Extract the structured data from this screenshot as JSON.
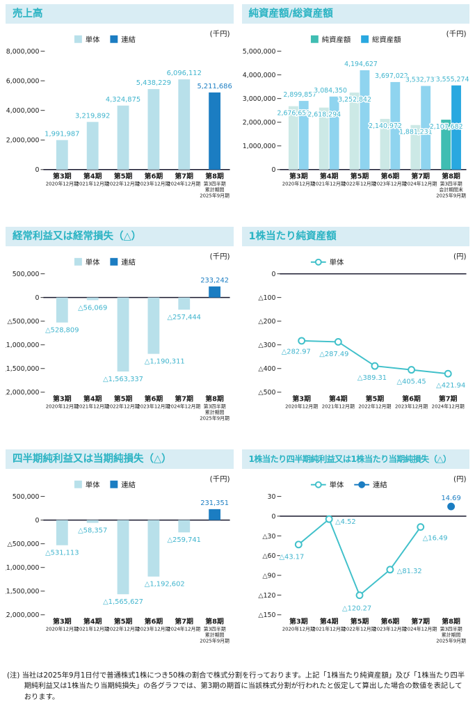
{
  "page": {
    "footnote": "(注) 当社は2025年9月1日付で普通株式1株につき50株の割合で株式分割を行っております。上記「1株当たり純資産額」及び「1株当たり四半期純利益又は1株当たり当期純損失」の各グラフでは、第3期の期首に当該株式分割が行われたと仮定して算出した場合の数値を表記しております。"
  },
  "colors": {
    "title_text": "#2ab3c3",
    "title_band_bg": "#d9edf4",
    "standalone_light_blue": "#b8e0ea",
    "consolidated_blue": "#1b7dc2",
    "net_assets_teal": "#3fbdb2",
    "net_assets_teal_light": "#cce9e6",
    "total_assets_sky": "#29a8e0",
    "total_assets_sky_light": "#8fd4ef",
    "value_label_cyan": "#3fb4cd",
    "line_teal": "#40c0ca",
    "axis": "#16162b"
  },
  "chart_data": [
    {
      "type": "bar",
      "title": "売上高",
      "unit": "(千円)",
      "legend": [
        {
          "label": "単体",
          "color": "#b8e0ea"
        },
        {
          "label": "連結",
          "color": "#1b7dc2"
        }
      ],
      "categories": [
        [
          "第3期",
          "2020年12月期"
        ],
        [
          "第4期",
          "2021年12月期"
        ],
        [
          "第5期",
          "2022年12月期"
        ],
        [
          "第6期",
          "2023年12月期"
        ],
        [
          "第7期",
          "2024年12月期"
        ],
        [
          "第8期",
          "第3四半期",
          "累計期間",
          "2025年9月期"
        ]
      ],
      "values": [
        1991987,
        3219892,
        4324875,
        5438229,
        6096112,
        5211686
      ],
      "labels": [
        "1,991,987",
        "3,219,892",
        "4,324,875",
        "5,438,229",
        "6,096,112",
        "5,211,686"
      ],
      "bar_colors": [
        "#b8e0ea",
        "#b8e0ea",
        "#b8e0ea",
        "#b8e0ea",
        "#b8e0ea",
        "#1b7dc2"
      ],
      "label_colors": [
        "#3fb4cd",
        "#3fb4cd",
        "#3fb4cd",
        "#3fb4cd",
        "#3fb4cd",
        "#1b7dc2"
      ],
      "label_dx": [
        0,
        0,
        0,
        0,
        0,
        0
      ],
      "ylim": [
        0,
        8000000
      ],
      "ytick_step": 2000000,
      "ytick_labels": [
        "8,000,000",
        "6,000,000",
        "4,000,000",
        "2,000,000",
        "0"
      ]
    },
    {
      "type": "bar",
      "title": "純資産額/総資産額",
      "unit": "(千円)",
      "legend": [
        {
          "label": "純資産額",
          "color": "#3fbdb2"
        },
        {
          "label": "総資産額",
          "color": "#29a8e0"
        }
      ],
      "categories": [
        [
          "第3期",
          "2020年12月期"
        ],
        [
          "第4期",
          "2021年12月期"
        ],
        [
          "第5期",
          "2022年12月期"
        ],
        [
          "第6期",
          "2023年12月期"
        ],
        [
          "第7期",
          "2024年12月期"
        ],
        [
          "第8期",
          "第3四半期",
          "会計期間末",
          "2025年9月期"
        ]
      ],
      "series": [
        {
          "name": "純資産額",
          "values": [
            2676651,
            2618294,
            3252842,
            2140972,
            1881231,
            2107682
          ],
          "labels": [
            "2,676,651",
            "2,618,294",
            "3,252,842",
            "2,140,972",
            "1,881,231",
            "2,107,682"
          ],
          "colors": [
            "#cce9e6",
            "#cce9e6",
            "#cce9e6",
            "#cce9e6",
            "#cce9e6",
            "#3fbdb2"
          ]
        },
        {
          "name": "総資産額",
          "values": [
            2899857,
            3084350,
            4194627,
            3697022,
            3532737,
            3555274
          ],
          "labels": [
            "2,899,857",
            "3,084,350",
            "4,194,627",
            "3,697,022",
            "3,532,737",
            "3,555,274"
          ],
          "colors": [
            "#8fd4ef",
            "#8fd4ef",
            "#8fd4ef",
            "#8fd4ef",
            "#8fd4ef",
            "#29a8e0"
          ]
        }
      ],
      "label_color": "#3fb4cd",
      "ylim": [
        0,
        5000000
      ],
      "ytick_step": 1000000,
      "ytick_labels": [
        "5,000,000",
        "4,000,000",
        "3,000,000",
        "2,000,000",
        "1,000,000",
        "0"
      ]
    },
    {
      "type": "bar",
      "title": "経常利益又は経常損失（△）",
      "unit": "(千円)",
      "legend": [
        {
          "label": "単体",
          "color": "#b8e0ea"
        },
        {
          "label": "連結",
          "color": "#1b7dc2"
        }
      ],
      "categories": [
        [
          "第3期",
          "2020年12月期"
        ],
        [
          "第4期",
          "2021年12月期"
        ],
        [
          "第5期",
          "2022年12月期"
        ],
        [
          "第6期",
          "2023年12月期"
        ],
        [
          "第7期",
          "2024年12月期"
        ],
        [
          "第8期",
          "第3四半期",
          "累計期間",
          "2025年9月期"
        ]
      ],
      "values": [
        -528809,
        -56069,
        -1563337,
        -1190311,
        -257444,
        233242
      ],
      "labels": [
        "△528,809",
        "△56,069",
        "△1,563,337",
        "△1,190,311",
        "△257,444",
        "233,242"
      ],
      "bar_colors": [
        "#b8e0ea",
        "#b8e0ea",
        "#b8e0ea",
        "#b8e0ea",
        "#b8e0ea",
        "#1b7dc2"
      ],
      "label_colors": [
        "#3fb4cd",
        "#3fb4cd",
        "#3fb4cd",
        "#3fb4cd",
        "#3fb4cd",
        "#1b7dc2"
      ],
      "label_dx": [
        0,
        0,
        0,
        16,
        0,
        0
      ],
      "ylim": [
        -2000000,
        500000
      ],
      "ytick_step": 500000,
      "ytick_labels": [
        "500,000",
        "0",
        "△500,000",
        "△1,000,000",
        "△1,500,000",
        "△2,000,000"
      ]
    },
    {
      "type": "line",
      "title": "1株当たり純資産額",
      "unit": "(円)",
      "legend": [
        {
          "label": "単体",
          "color": "#40c0ca",
          "marker": "open"
        }
      ],
      "categories": [
        [
          "第3期",
          "2020年12月期"
        ],
        [
          "第4期",
          "2021年12月期"
        ],
        [
          "第5期",
          "2022年12月期"
        ],
        [
          "第6期",
          "2023年12月期"
        ],
        [
          "第7期",
          "2024年12月期"
        ]
      ],
      "series": [
        {
          "name": "単体",
          "marker": "open",
          "color": "#40c0ca",
          "label_color": "#3fb4cd",
          "x": [
            0,
            1,
            2,
            3,
            4
          ],
          "values": [
            -282.97,
            -287.49,
            -389.31,
            -405.45,
            -421.94
          ],
          "labels": [
            "△282.97",
            "△287.49",
            "△389.31",
            "△405.45",
            "△421.94"
          ],
          "label_pos": [
            {
              "dx": -8,
              "dy": 19,
              "anchor": "middle"
            },
            {
              "dx": -6,
              "dy": 21,
              "anchor": "middle"
            },
            {
              "dx": -4,
              "dy": 20,
              "anchor": "middle"
            },
            {
              "dx": 0,
              "dy": 20,
              "anchor": "middle"
            },
            {
              "dx": 4,
              "dy": 20,
              "anchor": "middle"
            }
          ]
        }
      ],
      "ylim": [
        -500,
        0
      ],
      "ytick_step": 100,
      "ytick_labels": [
        "0",
        "△100",
        "△200",
        "△300",
        "△400",
        "△500"
      ]
    },
    {
      "type": "bar",
      "title": "四半期純利益又は当期純損失（△）",
      "unit": "(千円)",
      "legend": [
        {
          "label": "単体",
          "color": "#b8e0ea"
        },
        {
          "label": "連結",
          "color": "#1b7dc2"
        }
      ],
      "categories": [
        [
          "第3期",
          "2020年12月期"
        ],
        [
          "第4期",
          "2021年12月期"
        ],
        [
          "第5期",
          "2022年12月期"
        ],
        [
          "第6期",
          "2023年12月期"
        ],
        [
          "第7期",
          "2024年12月期"
        ],
        [
          "第8期",
          "第3四半期",
          "累計期間",
          "2025年9月期"
        ]
      ],
      "values": [
        -531113,
        -58357,
        -1565627,
        -1192602,
        -259741,
        231351
      ],
      "labels": [
        "△531,113",
        "△58,357",
        "△1,565,627",
        "△1,192,602",
        "△259,741",
        "231,351"
      ],
      "bar_colors": [
        "#b8e0ea",
        "#b8e0ea",
        "#b8e0ea",
        "#b8e0ea",
        "#b8e0ea",
        "#1b7dc2"
      ],
      "label_colors": [
        "#3fb4cd",
        "#3fb4cd",
        "#3fb4cd",
        "#3fb4cd",
        "#3fb4cd",
        "#1b7dc2"
      ],
      "label_dx": [
        0,
        0,
        0,
        16,
        0,
        0
      ],
      "ylim": [
        -2000000,
        500000
      ],
      "ytick_step": 500000,
      "ytick_labels": [
        "500,000",
        "0",
        "△500,000",
        "△1,000,000",
        "△1,500,000",
        "△2,000,000"
      ]
    },
    {
      "type": "line",
      "title": "1株当たり四半期純利益又は1株当たり当期純損失（△）",
      "unit": "(円)",
      "legend": [
        {
          "label": "単体",
          "color": "#40c0ca",
          "marker": "open"
        },
        {
          "label": "連結",
          "color": "#1b7dc2",
          "marker": "filled"
        }
      ],
      "categories": [
        [
          "第3期",
          "2020年12月期"
        ],
        [
          "第4期",
          "2021年12月期"
        ],
        [
          "第5期",
          "2022年12月期"
        ],
        [
          "第6期",
          "2023年12月期"
        ],
        [
          "第7期",
          "2024年12月期"
        ],
        [
          "第8期",
          "第3四半期",
          "累計期間",
          "2025年9月期"
        ]
      ],
      "series": [
        {
          "name": "単体",
          "marker": "open",
          "color": "#40c0ca",
          "label_color": "#3fb4cd",
          "x": [
            0,
            1,
            2,
            3,
            4
          ],
          "values": [
            -43.17,
            -4.52,
            -120.27,
            -81.32,
            -16.49
          ],
          "labels": [
            "△43.17",
            "△4.52",
            "△120.27",
            "△81.32",
            "△16.49"
          ],
          "label_pos": [
            {
              "dx": -10,
              "dy": 21,
              "anchor": "middle"
            },
            {
              "dx": 9,
              "dy": 7,
              "anchor": "start"
            },
            {
              "dx": -4,
              "dy": 22,
              "anchor": "middle"
            },
            {
              "dx": 10,
              "dy": 5,
              "anchor": "start"
            },
            {
              "dx": 3,
              "dy": 19,
              "anchor": "start"
            }
          ]
        },
        {
          "name": "連結",
          "marker": "filled",
          "color": "#1b7dc2",
          "label_color": "#1b7dc2",
          "x": [
            5
          ],
          "values": [
            14.69
          ],
          "labels": [
            "14.69"
          ],
          "label_pos": [
            {
              "dx": 0,
              "dy": -9,
              "anchor": "middle"
            }
          ]
        }
      ],
      "ylim": [
        -150,
        30
      ],
      "ytick_step": 30,
      "ytick_labels": [
        "30",
        "0",
        "△30",
        "△60",
        "△90",
        "△120",
        "△150"
      ]
    }
  ]
}
